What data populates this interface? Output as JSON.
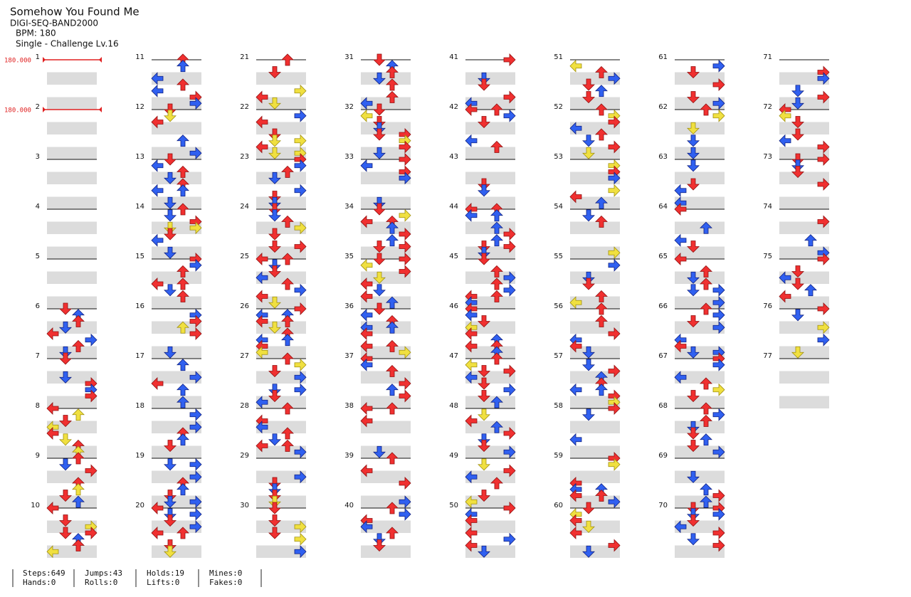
{
  "header": {
    "title": "Somehow You Found Me",
    "artist": "DIGI-SEQ-BAND2000",
    "bpm": "BPM: 180",
    "difficulty": "Single - Challenge  Lv.16"
  },
  "bpm_changes": [
    "180.000",
    "180.000"
  ],
  "measures": [
    1,
    2,
    3,
    4,
    5,
    6,
    7,
    8,
    9,
    10,
    11,
    12,
    13,
    14,
    15,
    16,
    17,
    18,
    19,
    20,
    21,
    22,
    23,
    24,
    25,
    26,
    27,
    28,
    29,
    30,
    31,
    32,
    33,
    34,
    35,
    36,
    37,
    38,
    39,
    40,
    41,
    42,
    43,
    44,
    45,
    46,
    47,
    48,
    49,
    50,
    51,
    52,
    53,
    54,
    55,
    56,
    57,
    58,
    59,
    60,
    61,
    62,
    63,
    64,
    65,
    66,
    67,
    68,
    69,
    70,
    71,
    72,
    73,
    74,
    75,
    76,
    77
  ],
  "stats": [
    [
      "Steps:649",
      "Hands:0"
    ],
    [
      "Jumps:43",
      "Rolls:0"
    ],
    [
      "Holds:19",
      "Lifts:0"
    ],
    [
      "Mines:0",
      "Fakes:0"
    ]
  ]
}
